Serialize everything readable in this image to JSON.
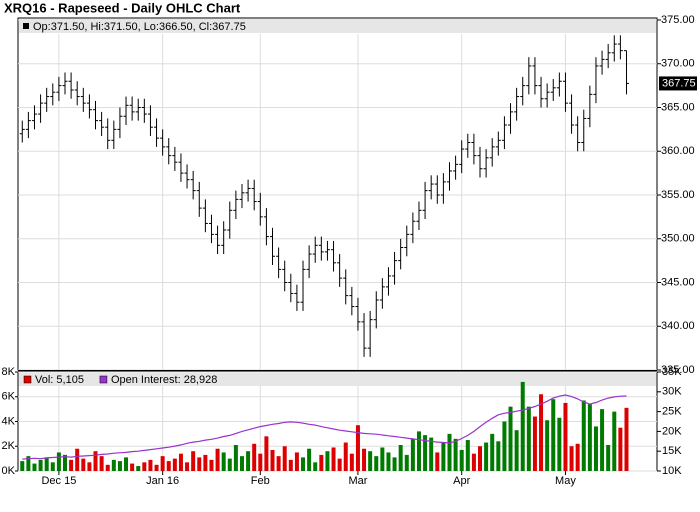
{
  "chart_data": [
    {
      "type": "ohlc",
      "title": "XRQ16 - Rapeseed - Daily OHLC Chart",
      "info": "Op:371.50, Hi:371.50, Lo:366.50, Cl:367.75",
      "color": "#000000",
      "grid": true,
      "xlim": [
        -0.7,
        104
      ],
      "ylim": [
        335,
        375
      ],
      "yticks": [
        {
          "value": 335,
          "label": "335.00"
        },
        {
          "value": 340,
          "label": "340.00"
        },
        {
          "value": 345,
          "label": "345.00"
        },
        {
          "value": 350,
          "label": "350.00"
        },
        {
          "value": 355,
          "label": "355.00"
        },
        {
          "value": 360,
          "label": "360.00"
        },
        {
          "value": 365,
          "label": "365.00"
        },
        {
          "value": 370,
          "label": "370.00"
        },
        {
          "value": 375,
          "label": "375.00"
        }
      ],
      "xticks": [
        {
          "value": 6,
          "label": "Dec 15"
        },
        {
          "value": 23,
          "label": "Jan 16"
        },
        {
          "value": 39,
          "label": "Feb"
        },
        {
          "value": 55,
          "label": "Mar"
        },
        {
          "value": 72,
          "label": "Apr"
        },
        {
          "value": 89,
          "label": "May"
        }
      ],
      "last_price": {
        "value": 367.75,
        "label": "367.75"
      },
      "open": [
        362,
        362.5,
        363.5,
        364.25,
        365.5,
        366.25,
        366.75,
        367.5,
        368,
        367,
        366.25,
        365.5,
        364.75,
        363.5,
        362.75,
        361.25,
        362.5,
        364,
        365.25,
        364.5,
        365,
        364.25,
        362.75,
        361.5,
        360.5,
        359.5,
        358.75,
        357.5,
        356.75,
        355.5,
        353.5,
        351.75,
        350.5,
        349.25,
        351,
        353.25,
        354.5,
        355.25,
        355.75,
        354.25,
        352.5,
        350.25,
        348,
        346.5,
        345,
        343.75,
        342.75,
        346.5,
        348.25,
        349.25,
        348.5,
        348.75,
        347.25,
        345.5,
        343.5,
        342.25,
        340.5,
        337.5,
        340.75,
        343,
        344.5,
        345.75,
        347.5,
        349,
        350.5,
        352,
        353.25,
        355.5,
        356.25,
        355,
        356.5,
        357.75,
        358.5,
        360.25,
        361,
        359.5,
        358,
        359.25,
        360.5,
        361.25,
        363,
        364.5,
        366.25,
        367.5,
        369.75,
        367.5,
        366,
        366.75,
        367.25,
        368,
        365.5,
        363,
        361,
        363.75,
        366.5,
        369.75,
        370.5,
        371.25,
        372.25,
        371.5
      ],
      "high": [
        363.5,
        364.5,
        365.25,
        366.5,
        367.25,
        367.75,
        368.5,
        369,
        369,
        368,
        367.25,
        366.5,
        365.75,
        364.5,
        363.75,
        363.5,
        365,
        366.25,
        366.25,
        366,
        366,
        365.25,
        363.75,
        362.5,
        361.5,
        360.5,
        359.75,
        358.5,
        357.75,
        356.5,
        354.5,
        352.75,
        351.5,
        352,
        354.25,
        355.5,
        356.25,
        356.75,
        356.75,
        355.25,
        353.5,
        351.25,
        349,
        347.5,
        346,
        344.75,
        347.5,
        349.25,
        350.25,
        350.25,
        349.75,
        349.75,
        348.25,
        346.5,
        344.5,
        343.25,
        341.5,
        341.75,
        344,
        345.5,
        346.75,
        348.5,
        350,
        351.5,
        353,
        354.25,
        356.5,
        357.25,
        357.25,
        357.5,
        358.75,
        359.5,
        361.25,
        362,
        362,
        360.5,
        360.25,
        361.5,
        362.25,
        364,
        365.5,
        367.25,
        368.5,
        370.75,
        370.75,
        368.5,
        367.75,
        368.25,
        369,
        369,
        366.5,
        364,
        364.75,
        367.5,
        370.75,
        371.5,
        372.25,
        373.25,
        373.25,
        371.5
      ],
      "low": [
        361,
        361.5,
        362.5,
        363.25,
        364.5,
        365.25,
        365.75,
        366.5,
        366,
        365.25,
        364.5,
        363.75,
        362.5,
        361.75,
        360.25,
        360.25,
        361.5,
        363,
        363.5,
        363.5,
        363.25,
        361.75,
        360.5,
        359.5,
        358.5,
        357.75,
        356.5,
        355.75,
        354.5,
        352.5,
        350.75,
        349.5,
        348.25,
        348.25,
        350,
        352.25,
        353.5,
        354.25,
        353.25,
        351.5,
        349.25,
        347,
        345.5,
        344,
        342.75,
        341.75,
        341.75,
        345.5,
        347.25,
        347.5,
        347.5,
        346.25,
        344.5,
        342.5,
        341.25,
        339.5,
        336.5,
        336.5,
        339.75,
        342,
        343.5,
        344.75,
        346.5,
        348,
        349.5,
        351,
        352.25,
        354.5,
        354,
        354,
        355.5,
        356.75,
        357.5,
        359.25,
        358.5,
        357,
        357,
        358.25,
        359.5,
        360.25,
        362,
        363.5,
        365.25,
        366.5,
        366.5,
        365,
        365,
        365.75,
        366.25,
        364.5,
        362,
        360,
        360,
        362.75,
        365.5,
        368.75,
        369.5,
        370.25,
        370.5,
        366.5
      ],
      "close": [
        362.5,
        363.5,
        364.25,
        365.5,
        366.25,
        366.75,
        367.5,
        368,
        367,
        366.25,
        365.5,
        364.75,
        363.5,
        362.75,
        361.25,
        362.5,
        364,
        365.25,
        364.5,
        365,
        364.25,
        362.75,
        361.5,
        360.5,
        359.5,
        358.75,
        357.5,
        356.75,
        355.5,
        353.5,
        351.75,
        350.5,
        349.25,
        351,
        353.25,
        354.5,
        355.25,
        355.75,
        354.25,
        352.5,
        350.25,
        348,
        346.5,
        345,
        343.75,
        342.75,
        346.5,
        348.25,
        349.25,
        348.5,
        348.75,
        347.25,
        345.5,
        343.5,
        342.25,
        340.5,
        337.5,
        340.75,
        343,
        344.5,
        345.75,
        347.5,
        349,
        350.5,
        352,
        353.25,
        355.5,
        356.25,
        355,
        356.5,
        357.75,
        358.5,
        360.25,
        361,
        359.5,
        358,
        359.25,
        360.5,
        361.25,
        363,
        364.5,
        366.25,
        367.5,
        369.75,
        367.5,
        366,
        366.75,
        367.25,
        368,
        365.5,
        363,
        361,
        363.75,
        366.5,
        369.75,
        370.5,
        371.25,
        372.25,
        371.5,
        367.75
      ]
    },
    {
      "type": "volume",
      "grid": true,
      "up_color": "#007a00",
      "down_color": "#dd0000",
      "xlim": [
        -0.7,
        104
      ],
      "ylim": [
        0,
        8000
      ],
      "y2lim": [
        10000,
        35000
      ],
      "yticks": [
        {
          "value": 0,
          "label": "0K"
        },
        {
          "value": 2000,
          "label": "2K"
        },
        {
          "value": 4000,
          "label": "4K"
        },
        {
          "value": 6000,
          "label": "6K"
        },
        {
          "value": 8000,
          "label": "8K"
        }
      ],
      "y2ticks": [
        {
          "value": 10000,
          "label": "10K"
        },
        {
          "value": 15000,
          "label": "15K"
        },
        {
          "value": 20000,
          "label": "20K"
        },
        {
          "value": 25000,
          "label": "25K"
        },
        {
          "value": 30000,
          "label": "30K"
        },
        {
          "value": 35000,
          "label": "35K"
        }
      ],
      "series": [
        {
          "name": "Vol: 5,105",
          "color": "#dd0000",
          "values": [
            800,
            1200,
            600,
            900,
            1100,
            700,
            1500,
            1300,
            900,
            1800,
            1000,
            700,
            1600,
            1200,
            500,
            900,
            800,
            1100,
            600,
            400,
            700,
            900,
            500,
            1200,
            800,
            1000,
            1400,
            700,
            1600,
            1100,
            1300,
            900,
            1800,
            1500,
            1000,
            2100,
            1200,
            1600,
            2200,
            1400,
            2800,
            1700,
            1200,
            2000,
            900,
            1500,
            1100,
            1800,
            700,
            1300,
            1600,
            1900,
            1000,
            2300,
            1400,
            3700,
            1800,
            1600,
            1200,
            1900,
            1500,
            1100,
            2100,
            1300,
            2600,
            3200,
            2900,
            2700,
            1500,
            2300,
            3000,
            2600,
            1700,
            2500,
            1400,
            2000,
            2300,
            3000,
            2400,
            4000,
            5200,
            3300,
            7200,
            5200,
            4400,
            6200,
            4100,
            5800,
            4300,
            5500,
            2000,
            2200,
            5700,
            5400,
            3600,
            5000,
            2100,
            4800,
            3500,
            5105
          ]
        },
        {
          "name": "Open Interest: 28,928",
          "color": "#9933cc",
          "axis": "y2",
          "values": [
            13000,
            13100,
            13200,
            13100,
            13300,
            13400,
            13500,
            13600,
            13500,
            13700,
            13800,
            13900,
            14000,
            14200,
            14300,
            14500,
            14600,
            14700,
            14900,
            15000,
            15200,
            15400,
            15600,
            15800,
            16000,
            16300,
            16600,
            17000,
            17300,
            17500,
            17800,
            18000,
            18300,
            18700,
            19000,
            19500,
            20000,
            20400,
            20800,
            21200,
            21500,
            21800,
            22000,
            22300,
            22400,
            22300,
            22100,
            21800,
            21600,
            21200,
            20900,
            20600,
            20300,
            20100,
            19900,
            19700,
            19500,
            19400,
            19300,
            19100,
            18900,
            18700,
            18500,
            18300,
            18100,
            17900,
            17700,
            17500,
            17300,
            17200,
            17100,
            17500,
            18200,
            19000,
            20000,
            21200,
            22300,
            23300,
            24200,
            24600,
            24800,
            25100,
            25400,
            25800,
            26300,
            26900,
            27600,
            28400,
            28900,
            29200,
            28800,
            28200,
            27400,
            26900,
            27300,
            27900,
            28400,
            28700,
            28900,
            28928
          ]
        }
      ]
    }
  ]
}
